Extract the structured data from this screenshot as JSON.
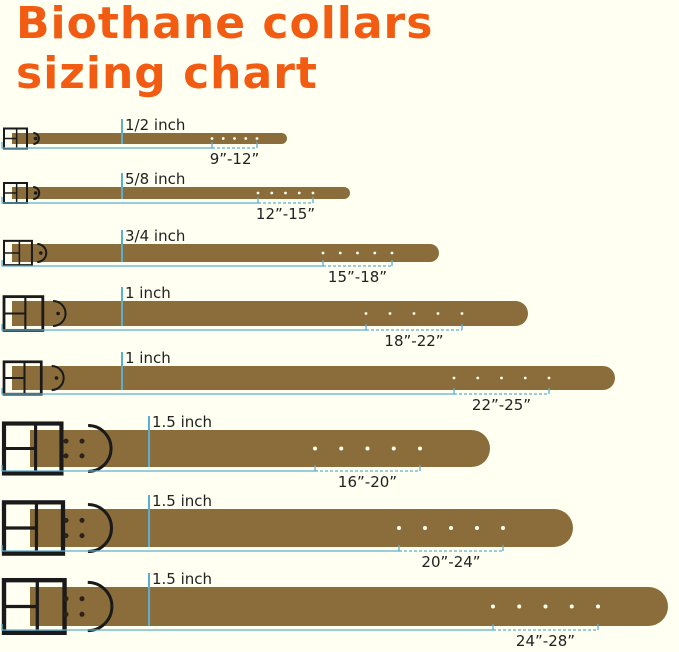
{
  "title_line1": "Biothane collars",
  "title_line2": "sizing chart",
  "colors": {
    "title": "#f25c12",
    "strap": "#8a6d3b",
    "buckle": "#1a1a1a",
    "measure": "#5aafd0",
    "background": "#fffff2"
  },
  "collars": [
    {
      "width_label": "1/2 inch",
      "size_range": "9”-12”",
      "holes": 5
    },
    {
      "width_label": "5/8 inch",
      "size_range": "12”-15”",
      "holes": 5
    },
    {
      "width_label": "3/4 inch",
      "size_range": "15”-18”",
      "holes": 5
    },
    {
      "width_label": "1 inch",
      "size_range": "18”-22”",
      "holes": 5
    },
    {
      "width_label": "1 inch",
      "size_range": "22”-25”",
      "holes": 5
    },
    {
      "width_label": "1.5 inch",
      "size_range": "16”-20”",
      "holes": 5
    },
    {
      "width_label": "1.5 inch",
      "size_range": "20”-24”",
      "holes": 5
    },
    {
      "width_label": "1.5 inch",
      "size_range": "24”-28”",
      "holes": 5
    }
  ]
}
